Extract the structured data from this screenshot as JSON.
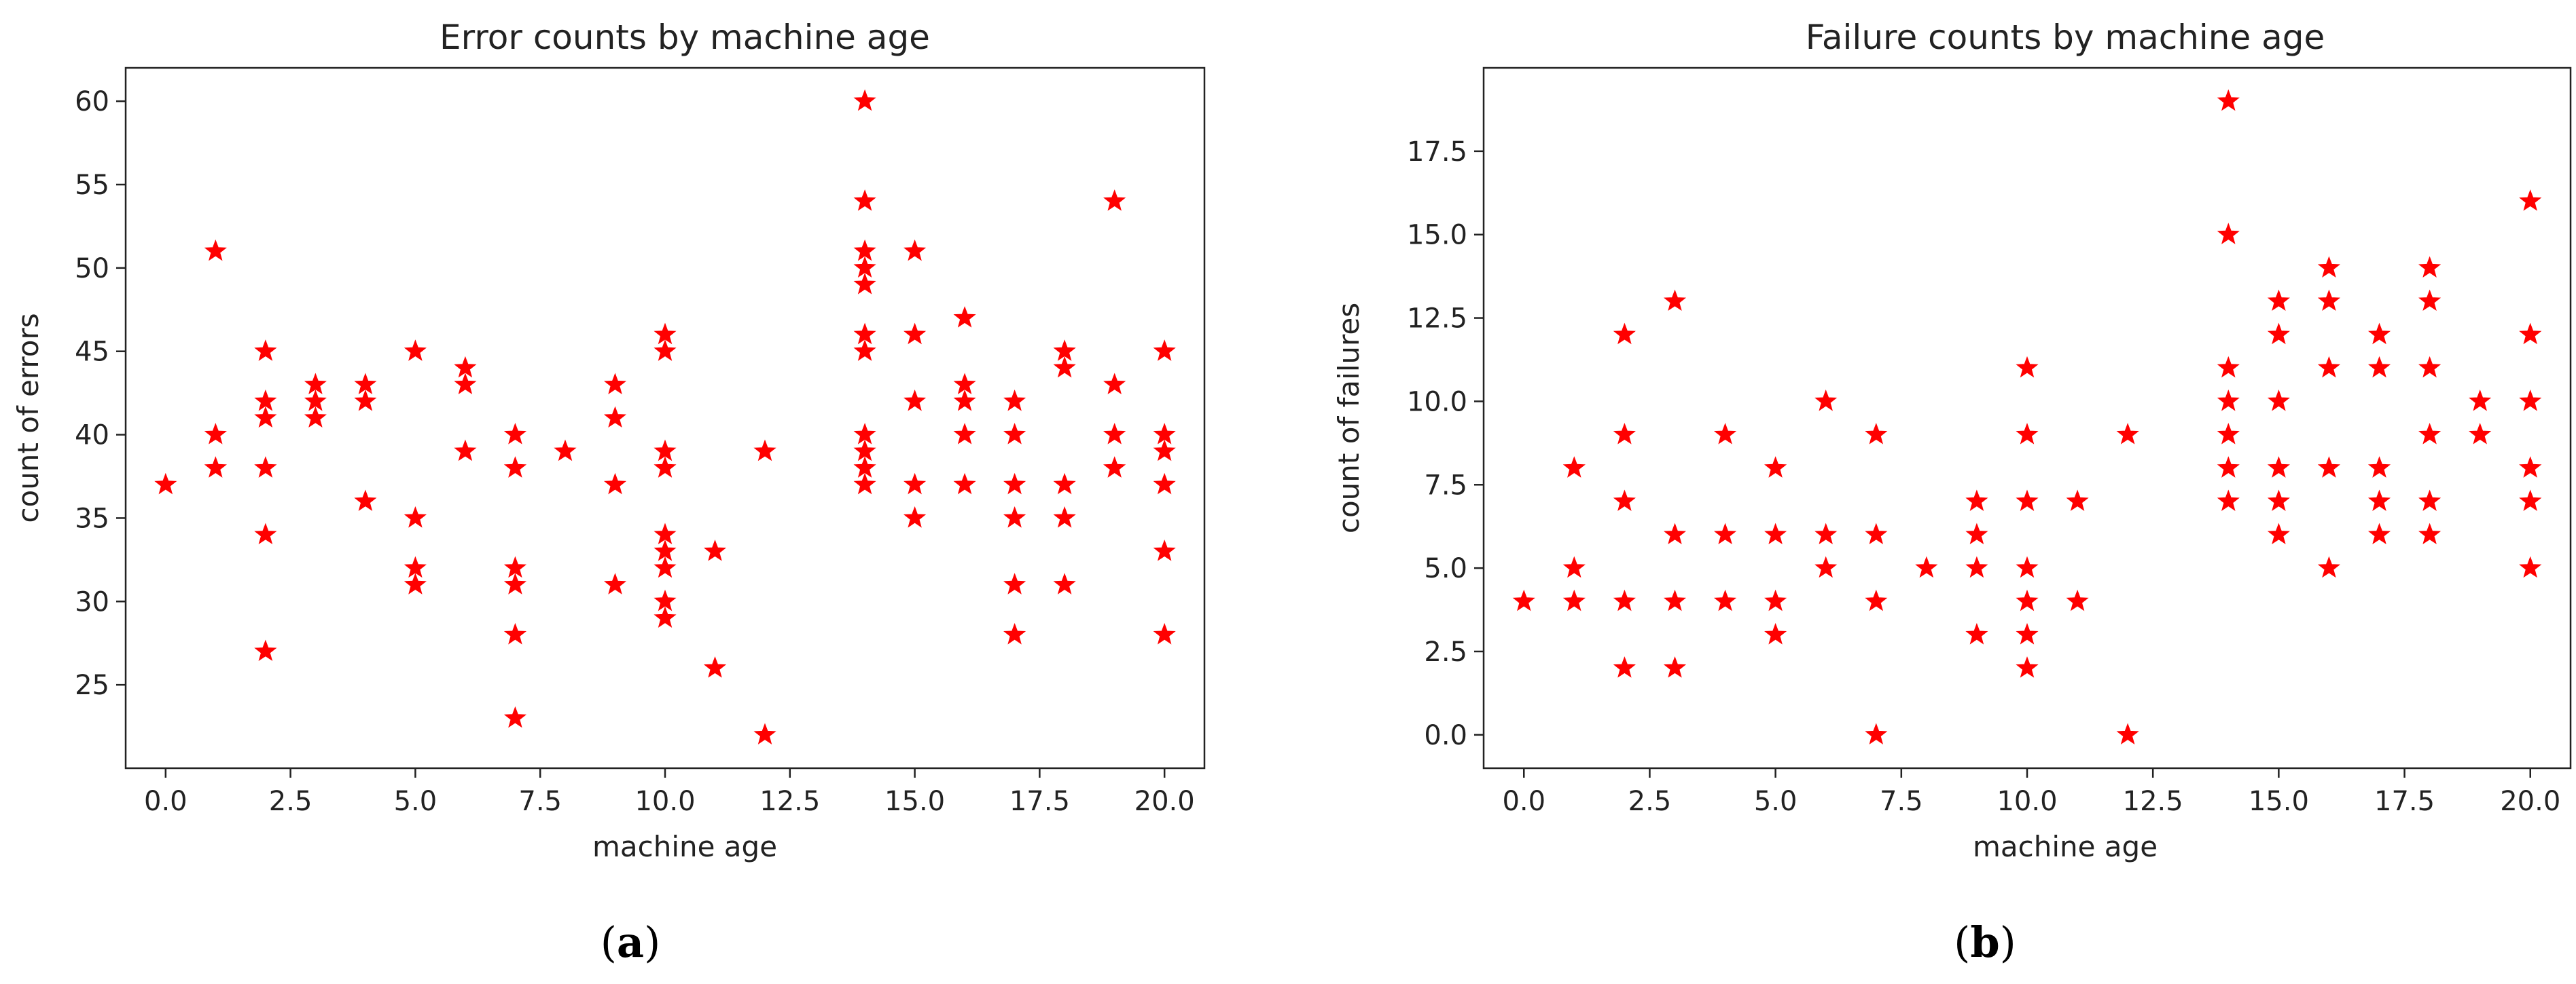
{
  "chart_data": [
    {
      "type": "scatter",
      "title": "Error counts by machine age",
      "xlabel": "machine age",
      "ylabel": "count of errors",
      "caption_letter": "a",
      "xlim": [
        -0.8,
        20.8
      ],
      "ylim": [
        20,
        62
      ],
      "xticks": [
        "0.0",
        "2.5",
        "5.0",
        "7.5",
        "10.0",
        "12.5",
        "15.0",
        "17.5",
        "20.0"
      ],
      "yticks": [
        "25",
        "30",
        "35",
        "40",
        "45",
        "50",
        "55",
        "60"
      ],
      "marker": "star",
      "color": "#ff0000",
      "points": [
        [
          0,
          37
        ],
        [
          1,
          51
        ],
        [
          1,
          40
        ],
        [
          1,
          38
        ],
        [
          2,
          45
        ],
        [
          2,
          42
        ],
        [
          2,
          41
        ],
        [
          2,
          38
        ],
        [
          2,
          34
        ],
        [
          2,
          27
        ],
        [
          3,
          43
        ],
        [
          3,
          42
        ],
        [
          3,
          41
        ],
        [
          4,
          43
        ],
        [
          4,
          42
        ],
        [
          4,
          36
        ],
        [
          5,
          45
        ],
        [
          5,
          35
        ],
        [
          5,
          32
        ],
        [
          5,
          31
        ],
        [
          6,
          44
        ],
        [
          6,
          43
        ],
        [
          6,
          39
        ],
        [
          7,
          40
        ],
        [
          7,
          38
        ],
        [
          7,
          32
        ],
        [
          7,
          31
        ],
        [
          7,
          28
        ],
        [
          7,
          23
        ],
        [
          8,
          39
        ],
        [
          9,
          43
        ],
        [
          9,
          41
        ],
        [
          9,
          37
        ],
        [
          9,
          31
        ],
        [
          10,
          46
        ],
        [
          10,
          45
        ],
        [
          10,
          39
        ],
        [
          10,
          38
        ],
        [
          10,
          34
        ],
        [
          10,
          33
        ],
        [
          10,
          32
        ],
        [
          10,
          30
        ],
        [
          10,
          29
        ],
        [
          11,
          33
        ],
        [
          11,
          26
        ],
        [
          12,
          39
        ],
        [
          12,
          22
        ],
        [
          14,
          60
        ],
        [
          14,
          54
        ],
        [
          14,
          51
        ],
        [
          14,
          50
        ],
        [
          14,
          49
        ],
        [
          14,
          46
        ],
        [
          14,
          45
        ],
        [
          14,
          40
        ],
        [
          14,
          39
        ],
        [
          14,
          38
        ],
        [
          14,
          37
        ],
        [
          15,
          51
        ],
        [
          15,
          46
        ],
        [
          15,
          42
        ],
        [
          15,
          37
        ],
        [
          15,
          35
        ],
        [
          16,
          47
        ],
        [
          16,
          43
        ],
        [
          16,
          42
        ],
        [
          16,
          40
        ],
        [
          16,
          37
        ],
        [
          17,
          42
        ],
        [
          17,
          40
        ],
        [
          17,
          37
        ],
        [
          17,
          35
        ],
        [
          17,
          31
        ],
        [
          17,
          28
        ],
        [
          18,
          45
        ],
        [
          18,
          44
        ],
        [
          18,
          37
        ],
        [
          18,
          35
        ],
        [
          18,
          31
        ],
        [
          19,
          54
        ],
        [
          19,
          43
        ],
        [
          19,
          40
        ],
        [
          19,
          38
        ],
        [
          20,
          45
        ],
        [
          20,
          40
        ],
        [
          20,
          39
        ],
        [
          20,
          37
        ],
        [
          20,
          33
        ],
        [
          20,
          28
        ]
      ]
    },
    {
      "type": "scatter",
      "title": "Failure counts by machine age",
      "xlabel": "machine age",
      "ylabel": "count of failures",
      "caption_letter": "b",
      "xlim": [
        -0.8,
        20.8
      ],
      "ylim": [
        -1,
        20
      ],
      "xticks": [
        "0.0",
        "2.5",
        "5.0",
        "7.5",
        "10.0",
        "12.5",
        "15.0",
        "17.5",
        "20.0"
      ],
      "yticks": [
        "0.0",
        "2.5",
        "5.0",
        "7.5",
        "10.0",
        "12.5",
        "15.0",
        "17.5"
      ],
      "marker": "star",
      "color": "#ff0000",
      "points": [
        [
          0,
          4
        ],
        [
          1,
          8
        ],
        [
          1,
          5
        ],
        [
          1,
          4
        ],
        [
          2,
          12
        ],
        [
          2,
          9
        ],
        [
          2,
          7
        ],
        [
          2,
          4
        ],
        [
          2,
          2
        ],
        [
          3,
          13
        ],
        [
          3,
          6
        ],
        [
          3,
          4
        ],
        [
          3,
          2
        ],
        [
          4,
          9
        ],
        [
          4,
          6
        ],
        [
          4,
          4
        ],
        [
          5,
          8
        ],
        [
          5,
          6
        ],
        [
          5,
          4
        ],
        [
          5,
          3
        ],
        [
          6,
          10
        ],
        [
          6,
          6
        ],
        [
          6,
          5
        ],
        [
          7,
          9
        ],
        [
          7,
          6
        ],
        [
          7,
          4
        ],
        [
          7,
          0
        ],
        [
          8,
          5
        ],
        [
          9,
          7
        ],
        [
          9,
          6
        ],
        [
          9,
          5
        ],
        [
          9,
          3
        ],
        [
          10,
          11
        ],
        [
          10,
          9
        ],
        [
          10,
          7
        ],
        [
          10,
          5
        ],
        [
          10,
          4
        ],
        [
          10,
          3
        ],
        [
          10,
          2
        ],
        [
          11,
          7
        ],
        [
          11,
          4
        ],
        [
          12,
          9
        ],
        [
          12,
          0
        ],
        [
          14,
          19
        ],
        [
          14,
          15
        ],
        [
          14,
          11
        ],
        [
          14,
          10
        ],
        [
          14,
          9
        ],
        [
          14,
          8
        ],
        [
          14,
          7
        ],
        [
          15,
          13
        ],
        [
          15,
          12
        ],
        [
          15,
          10
        ],
        [
          15,
          8
        ],
        [
          15,
          7
        ],
        [
          15,
          6
        ],
        [
          16,
          14
        ],
        [
          16,
          13
        ],
        [
          16,
          11
        ],
        [
          16,
          8
        ],
        [
          16,
          5
        ],
        [
          17,
          12
        ],
        [
          17,
          11
        ],
        [
          17,
          8
        ],
        [
          17,
          7
        ],
        [
          17,
          6
        ],
        [
          18,
          14
        ],
        [
          18,
          13
        ],
        [
          18,
          11
        ],
        [
          18,
          9
        ],
        [
          18,
          7
        ],
        [
          18,
          6
        ],
        [
          19,
          10
        ],
        [
          19,
          9
        ],
        [
          20,
          16
        ],
        [
          20,
          12
        ],
        [
          20,
          10
        ],
        [
          20,
          8
        ],
        [
          20,
          7
        ],
        [
          20,
          5
        ]
      ]
    }
  ]
}
